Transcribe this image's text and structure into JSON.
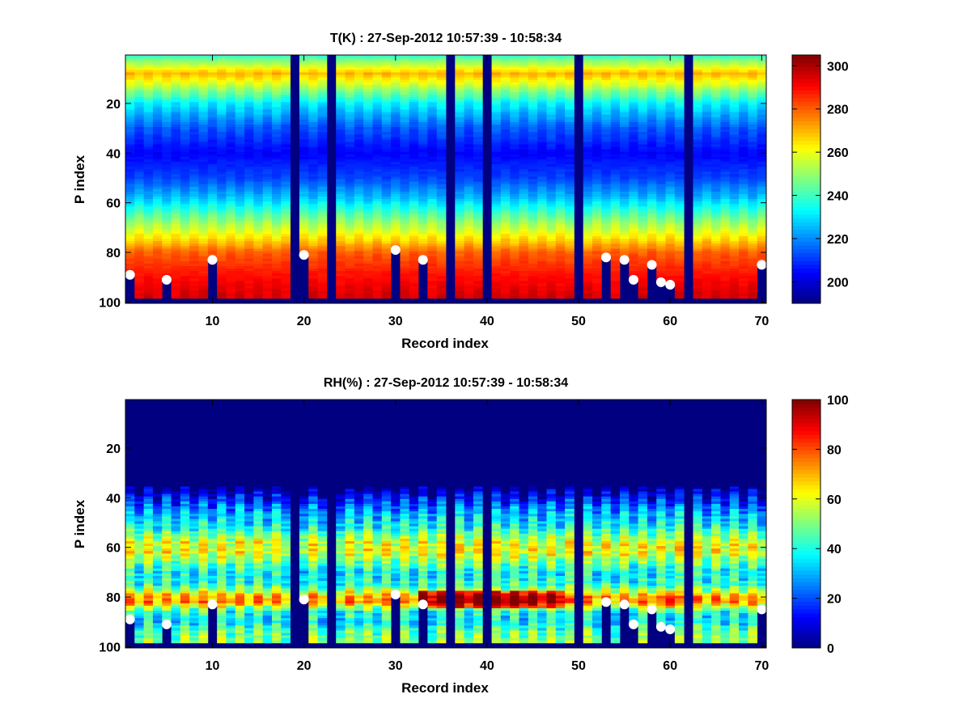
{
  "chart_data": [
    {
      "type": "heatmap",
      "title": "T(K) : 27-Sep-2012 10:57:39 - 10:58:34",
      "xlabel": "Record index",
      "ylabel": "P index",
      "xlim": [
        0.5,
        70.5
      ],
      "ylim": [
        0.5,
        100.5
      ],
      "y_reversed": true,
      "x_ticks": [
        10,
        20,
        30,
        40,
        50,
        60,
        70
      ],
      "y_ticks": [
        20,
        40,
        60,
        80,
        100
      ],
      "colorbar": {
        "min": 190,
        "max": 305,
        "ticks": [
          200,
          220,
          240,
          260,
          280,
          300
        ]
      },
      "colormap": "jet",
      "profile_means": [
        [
          1,
          240
        ],
        [
          8,
          270
        ],
        [
          12,
          258
        ],
        [
          20,
          232
        ],
        [
          30,
          214
        ],
        [
          40,
          204
        ],
        [
          50,
          212
        ],
        [
          58,
          226
        ],
        [
          66,
          246
        ],
        [
          74,
          264
        ],
        [
          80,
          280
        ],
        [
          88,
          288
        ],
        [
          96,
          294
        ],
        [
          100,
          296
        ]
      ],
      "missing_records": [
        19,
        23,
        36,
        40,
        50,
        62
      ],
      "surface_p_index": {
        "1": 89,
        "5": 91,
        "10": 83,
        "20": 81,
        "30": 79,
        "33": 83,
        "53": 82,
        "55": 83,
        "56": 91,
        "58": 85,
        "59": 92,
        "60": 93,
        "70": 85
      },
      "markers": [
        [
          1,
          89
        ],
        [
          5,
          91
        ],
        [
          10,
          83
        ],
        [
          20,
          81
        ],
        [
          30,
          79
        ],
        [
          33,
          83
        ],
        [
          53,
          82
        ],
        [
          55,
          83
        ],
        [
          56,
          91
        ],
        [
          58,
          85
        ],
        [
          59,
          92
        ],
        [
          60,
          93
        ],
        [
          70,
          85
        ]
      ]
    },
    {
      "type": "heatmap",
      "title": "RH(%) : 27-Sep-2012 10:57:39 - 10:58:34",
      "xlabel": "Record index",
      "ylabel": "P index",
      "xlim": [
        0.5,
        70.5
      ],
      "ylim": [
        0.5,
        100.5
      ],
      "y_reversed": true,
      "x_ticks": [
        10,
        20,
        30,
        40,
        50,
        60,
        70
      ],
      "y_ticks": [
        20,
        40,
        60,
        80,
        100
      ],
      "colorbar": {
        "min": 0,
        "max": 100,
        "ticks": [
          0,
          20,
          40,
          60,
          80,
          100
        ]
      },
      "colormap": "jet",
      "profile_means": [
        [
          1,
          0
        ],
        [
          36,
          0
        ],
        [
          40,
          12
        ],
        [
          46,
          28
        ],
        [
          52,
          38
        ],
        [
          58,
          58
        ],
        [
          62,
          60
        ],
        [
          66,
          48
        ],
        [
          70,
          36
        ],
        [
          75,
          40
        ],
        [
          80,
          70
        ],
        [
          82,
          72
        ],
        [
          86,
          40
        ],
        [
          90,
          34
        ],
        [
          94,
          46
        ],
        [
          98,
          50
        ],
        [
          100,
          50
        ]
      ],
      "high_rh_records": [
        33,
        34,
        35,
        37,
        38,
        39,
        41,
        42,
        43,
        44,
        45,
        46,
        47,
        48,
        60
      ],
      "missing_records": [
        19,
        23,
        36,
        40,
        50,
        62
      ],
      "surface_p_index": {
        "1": 89,
        "5": 91,
        "10": 83,
        "20": 81,
        "30": 79,
        "33": 83,
        "53": 82,
        "55": 83,
        "56": 91,
        "58": 85,
        "59": 92,
        "60": 93,
        "70": 85
      },
      "markers": [
        [
          1,
          89
        ],
        [
          5,
          91
        ],
        [
          10,
          83
        ],
        [
          20,
          81
        ],
        [
          30,
          79
        ],
        [
          33,
          83
        ],
        [
          53,
          82
        ],
        [
          55,
          83
        ],
        [
          56,
          91
        ],
        [
          58,
          85
        ],
        [
          59,
          92
        ],
        [
          60,
          93
        ],
        [
          70,
          85
        ]
      ]
    }
  ]
}
